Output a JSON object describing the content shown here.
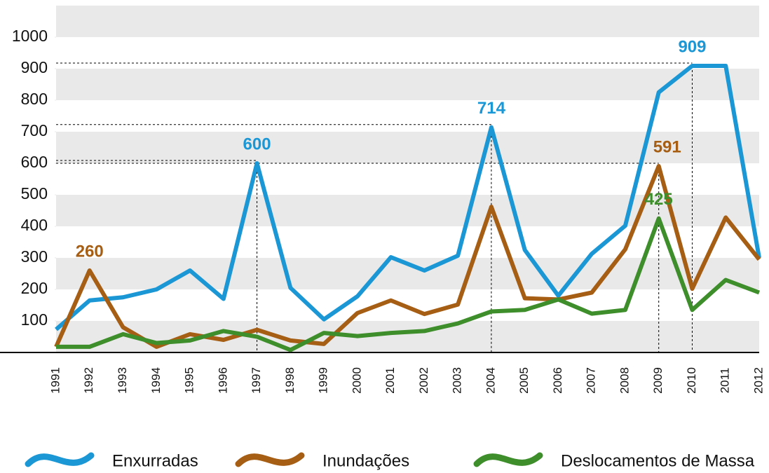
{
  "chart_data": {
    "type": "line",
    "x": [
      1991,
      1992,
      1993,
      1994,
      1995,
      1996,
      1997,
      1998,
      1999,
      2000,
      2001,
      2002,
      2003,
      2004,
      2005,
      2006,
      2007,
      2008,
      2009,
      2010,
      2011,
      2012
    ],
    "xlim": [
      1991,
      2012
    ],
    "ylim": [
      0,
      1100
    ],
    "yticks": [
      100,
      200,
      300,
      400,
      500,
      600,
      700,
      800,
      900,
      1000
    ],
    "bands": true,
    "legend": "bottom",
    "series": [
      {
        "name": "Enxurradas",
        "color": "#1b97d5",
        "values": [
          73,
          165,
          175,
          200,
          260,
          170,
          600,
          205,
          105,
          178,
          302,
          260,
          307,
          714,
          325,
          180,
          313,
          402,
          825,
          909,
          909,
          300
        ],
        "labeled": [
          6,
          13,
          19
        ],
        "guided": [
          6,
          13,
          19
        ]
      },
      {
        "name": "Inundações",
        "color": "#a65e14",
        "values": [
          18,
          260,
          80,
          18,
          58,
          40,
          72,
          38,
          27,
          125,
          165,
          122,
          152,
          462,
          172,
          168,
          190,
          327,
          591,
          202,
          428,
          295
        ],
        "labeled": [
          1,
          18
        ],
        "guided": [
          18
        ]
      },
      {
        "name": "Deslocamentos de Massa",
        "color": "#3e8e2b",
        "values": [
          18,
          18,
          58,
          30,
          38,
          68,
          50,
          8,
          62,
          52,
          62,
          68,
          92,
          130,
          135,
          168,
          123,
          135,
          425,
          135,
          230,
          190
        ],
        "labeled": [
          18
        ],
        "guided": []
      }
    ]
  }
}
